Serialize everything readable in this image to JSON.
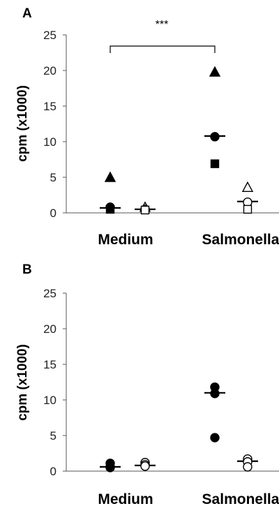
{
  "chart_data": [
    {
      "type": "scatter",
      "panel_label": "A",
      "ylabel": "cpm (x1000)",
      "ylim": [
        0,
        25
      ],
      "yticks": [
        0,
        5,
        10,
        15,
        20,
        25
      ],
      "categories": [
        "Medium",
        "Salmonella"
      ],
      "significance": "***",
      "series": [
        {
          "marker": "filled-triangle",
          "values": [
            5.0,
            19.8
          ]
        },
        {
          "marker": "filled-circle",
          "values": [
            0.8,
            10.7
          ]
        },
        {
          "marker": "filled-square",
          "values": [
            0.5,
            6.9
          ]
        },
        {
          "marker": "open-triangle",
          "values": [
            0.8,
            3.6
          ]
        },
        {
          "marker": "open-circle",
          "values": [
            0.5,
            1.5
          ]
        },
        {
          "marker": "open-square",
          "values": [
            0.4,
            0.5
          ]
        }
      ],
      "medians": [
        [
          0.7,
          10.8
        ],
        [
          0.5,
          1.6
        ]
      ]
    },
    {
      "type": "scatter",
      "panel_label": "B",
      "ylabel": "cpm (x1000)",
      "ylim": [
        0,
        25
      ],
      "yticks": [
        0,
        5,
        10,
        15,
        20,
        25
      ],
      "categories": [
        "Medium",
        "Salmonella"
      ],
      "series": [
        {
          "marker": "filled-circle",
          "values": [
            1.1,
            11.8
          ]
        },
        {
          "marker": "filled-circle",
          "values": [
            0.6,
            10.9
          ]
        },
        {
          "marker": "filled-circle",
          "values": [
            0.5,
            4.7
          ]
        },
        {
          "marker": "open-circle",
          "values": [
            1.2,
            1.7
          ]
        },
        {
          "marker": "open-circle",
          "values": [
            0.9,
            1.3
          ]
        },
        {
          "marker": "open-circle",
          "values": [
            0.7,
            0.6
          ]
        }
      ],
      "medians": [
        [
          0.6,
          11.0
        ],
        [
          0.8,
          1.4
        ]
      ]
    }
  ],
  "colors": {
    "filled": "#000000",
    "open": "#ffffff",
    "stroke": "#000000"
  }
}
